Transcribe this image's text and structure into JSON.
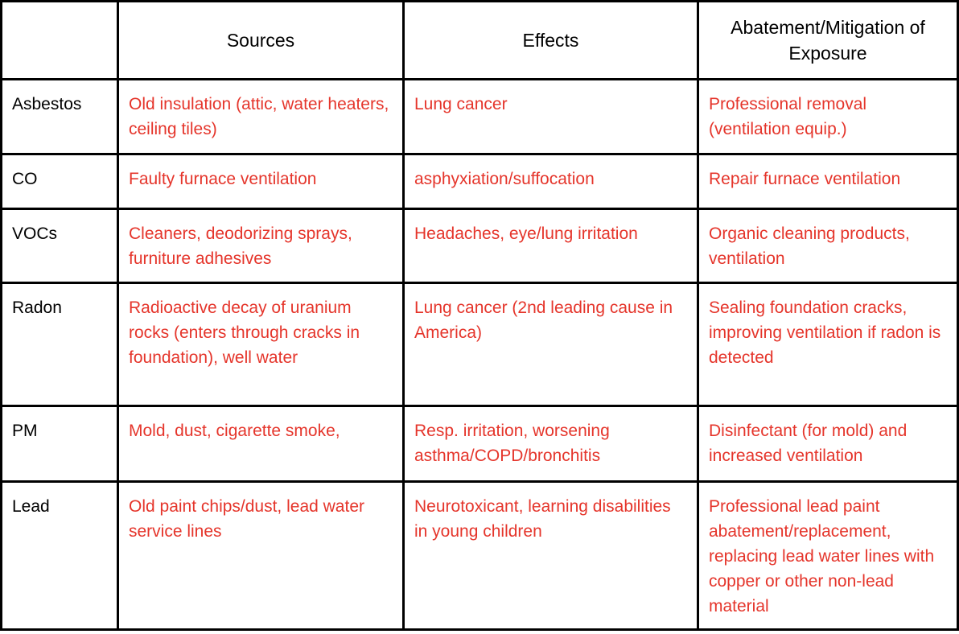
{
  "colors": {
    "text_red": "#e5352b",
    "text_black": "#000000",
    "border": "#000000",
    "background": "#ffffff"
  },
  "table": {
    "headers": [
      "",
      "Sources",
      "Effects",
      "Abatement/Mitigation of Exposure"
    ],
    "rows": [
      [
        "Asbestos",
        "Old insulation (attic, water heaters, ceiling tiles)",
        "Lung cancer",
        "Professional removal (ventilation equip.)"
      ],
      [
        "CO",
        "Faulty furnace ventilation",
        "asphyxiation/suffocation",
        "Repair furnace ventilation"
      ],
      [
        "VOCs",
        "Cleaners, deodorizing sprays, furniture adhesives",
        "Headaches, eye/lung irritation",
        "Organic cleaning products, ventilation"
      ],
      [
        "Radon",
        "Radioactive decay of uranium rocks (enters through cracks in foundation), well water",
        "Lung cancer (2nd leading cause in America)",
        "Sealing foundation cracks, improving ventilation if radon is detected"
      ],
      [
        "PM",
        "Mold, dust, cigarette smoke,",
        "Resp. irritation, worsening asthma/COPD/bronchitis",
        "Disinfectant (for mold) and increased ventilation"
      ],
      [
        "Lead",
        "Old paint chips/dust, lead water service lines",
        "Neurotoxicant, learning disabilities in young children",
        "Professional lead paint abatement/replacement, replacing lead water lines with copper or other non-lead material"
      ]
    ]
  }
}
